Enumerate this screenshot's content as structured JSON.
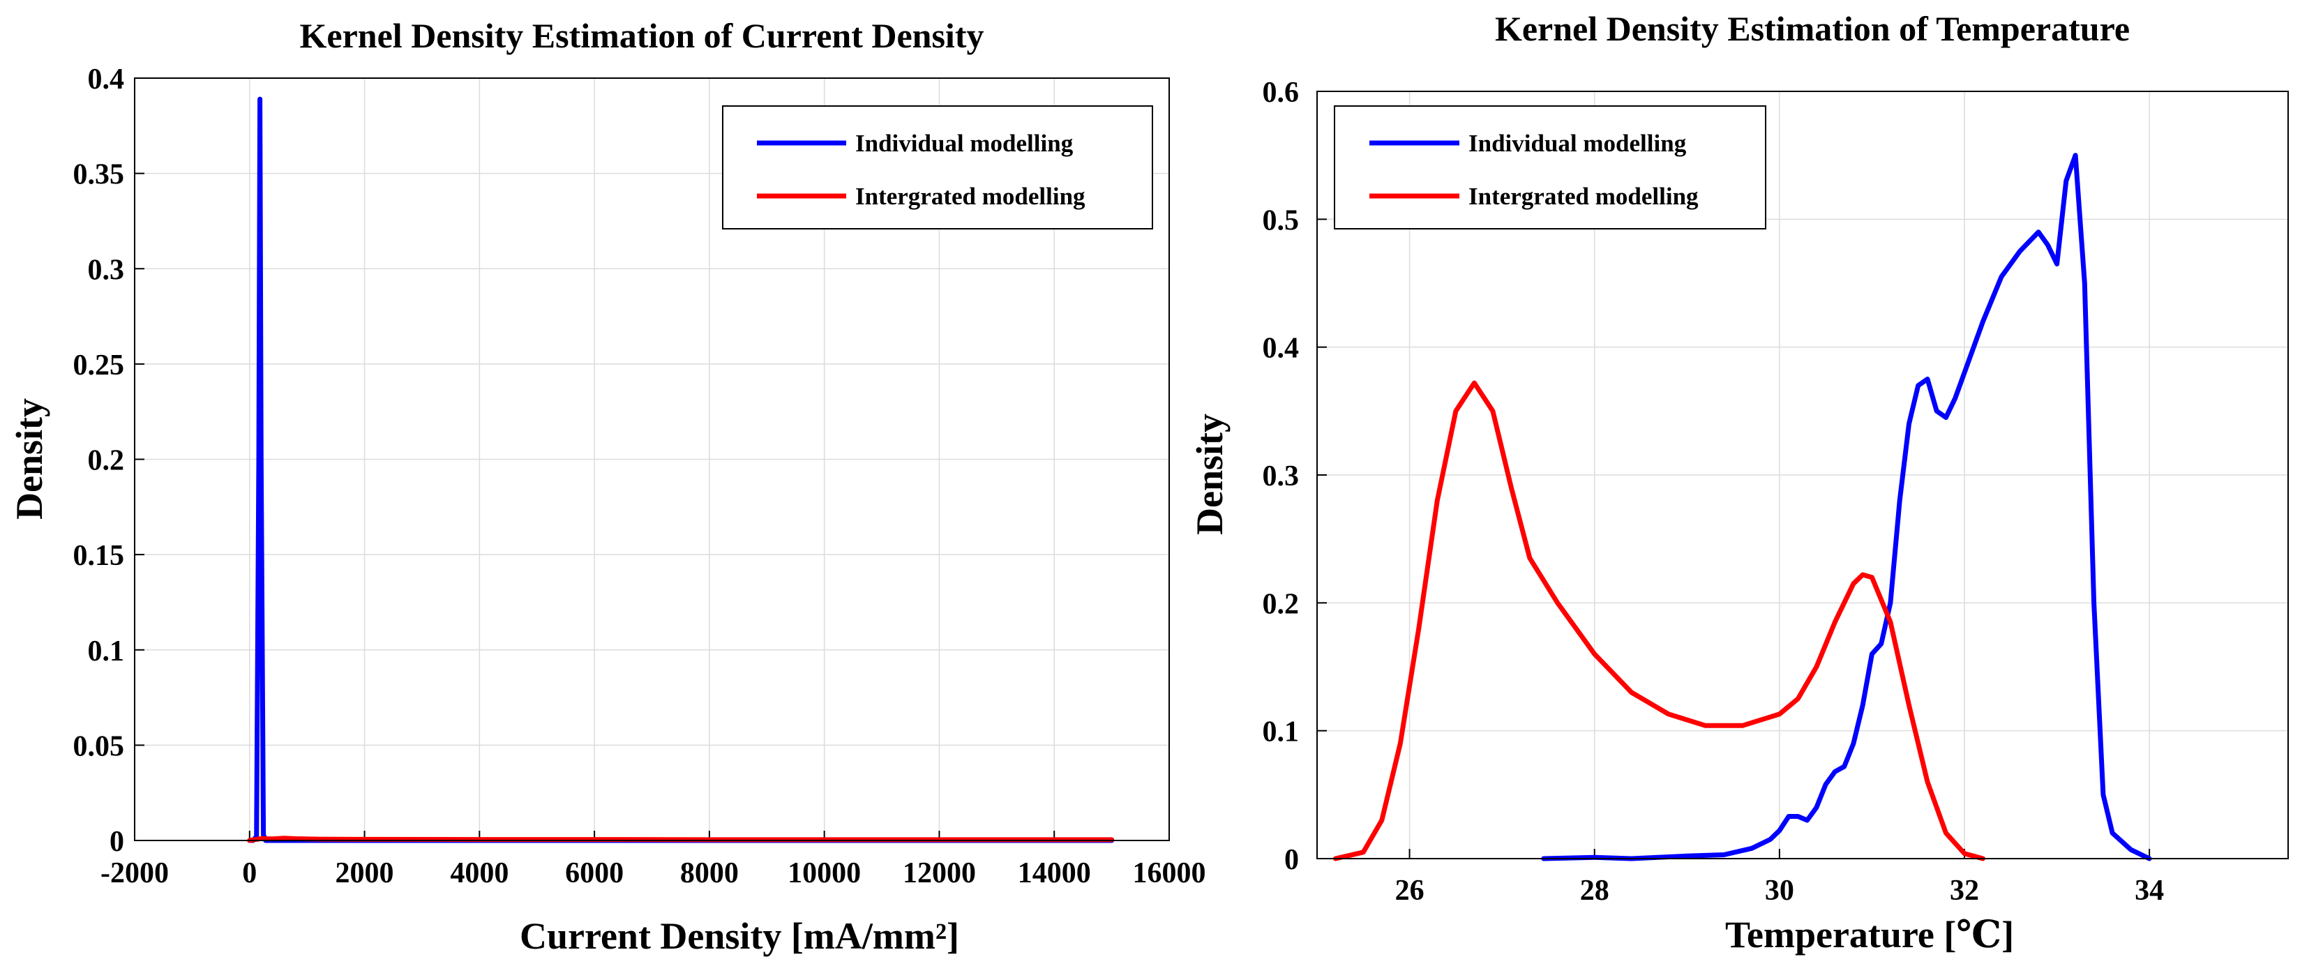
{
  "chart_data": [
    {
      "type": "line",
      "title": "Kernel Density Estimation of Current Density",
      "xlabel": "Current Density [mA/mm²]",
      "ylabel": "Density",
      "xlim": [
        -2000,
        16000
      ],
      "ylim": [
        0,
        0.4
      ],
      "xticks": [
        -2000,
        0,
        2000,
        4000,
        6000,
        8000,
        10000,
        12000,
        14000,
        16000
      ],
      "yticks": [
        0,
        0.05,
        0.1,
        0.15,
        0.2,
        0.25,
        0.3,
        0.35,
        0.4
      ],
      "grid": true,
      "legend": "top-right",
      "series": [
        {
          "name": "Individual modelling",
          "color": "#0000ff",
          "x": [
            0,
            60,
            120,
            160,
            180,
            200,
            240,
            280,
            400,
            1000,
            3000,
            8000,
            15000
          ],
          "y": [
            0,
            0,
            0.002,
            0.2,
            0.389,
            0.2,
            0.003,
            0,
            0,
            0,
            0,
            0,
            0
          ]
        },
        {
          "name": "Intergrated modelling",
          "color": "#ff0000",
          "x": [
            0,
            200,
            400,
            600,
            800,
            1200,
            2000,
            4000,
            6000,
            8000,
            10000,
            12000,
            14000,
            15000
          ],
          "y": [
            0,
            0.001,
            0.0008,
            0.0012,
            0.0009,
            0.0007,
            0.0006,
            0.0005,
            0.0005,
            0.0004,
            0.0004,
            0.0004,
            0.0004,
            0.0004
          ]
        }
      ]
    },
    {
      "type": "line",
      "title": "Kernel Density Estimation of Temperature",
      "xlabel": "Temperature [℃]",
      "ylabel": "Density",
      "xlim": [
        25,
        35.5
      ],
      "ylim": [
        0,
        0.6
      ],
      "xticks": [
        26,
        28,
        30,
        32,
        34
      ],
      "yticks": [
        0,
        0.1,
        0.2,
        0.3,
        0.4,
        0.5,
        0.6
      ],
      "grid": true,
      "legend": "top-left",
      "series": [
        {
          "name": "Individual modelling",
          "color": "#0000ff",
          "x": [
            27.45,
            28.0,
            28.4,
            29.0,
            29.4,
            29.7,
            29.9,
            30.0,
            30.1,
            30.2,
            30.3,
            30.4,
            30.5,
            30.6,
            30.7,
            30.8,
            30.9,
            31.0,
            31.1,
            31.2,
            31.3,
            31.4,
            31.5,
            31.6,
            31.7,
            31.8,
            31.9,
            32.0,
            32.2,
            32.4,
            32.6,
            32.8,
            32.9,
            33.0,
            33.1,
            33.2,
            33.3,
            33.4,
            33.5,
            33.6,
            33.8,
            34.0
          ],
          "y": [
            0.0,
            0.001,
            0.0,
            0.002,
            0.003,
            0.008,
            0.015,
            0.022,
            0.033,
            0.033,
            0.03,
            0.04,
            0.058,
            0.068,
            0.072,
            0.09,
            0.12,
            0.16,
            0.168,
            0.2,
            0.28,
            0.34,
            0.37,
            0.375,
            0.35,
            0.345,
            0.36,
            0.38,
            0.42,
            0.455,
            0.475,
            0.49,
            0.48,
            0.465,
            0.53,
            0.55,
            0.45,
            0.2,
            0.05,
            0.02,
            0.007,
            0.0
          ]
        },
        {
          "name": "Intergrated modelling",
          "color": "#ff0000",
          "x": [
            25.2,
            25.5,
            25.7,
            25.9,
            26.1,
            26.3,
            26.5,
            26.7,
            26.9,
            27.1,
            27.3,
            27.6,
            28.0,
            28.4,
            28.8,
            29.2,
            29.6,
            30.0,
            30.2,
            30.4,
            30.6,
            30.8,
            30.9,
            31.0,
            31.2,
            31.4,
            31.6,
            31.8,
            32.0,
            32.2
          ],
          "y": [
            0.0,
            0.005,
            0.03,
            0.09,
            0.18,
            0.28,
            0.35,
            0.372,
            0.35,
            0.29,
            0.235,
            0.2,
            0.16,
            0.13,
            0.113,
            0.104,
            0.104,
            0.113,
            0.125,
            0.15,
            0.185,
            0.215,
            0.222,
            0.22,
            0.185,
            0.12,
            0.06,
            0.02,
            0.004,
            0.0
          ]
        }
      ]
    }
  ]
}
